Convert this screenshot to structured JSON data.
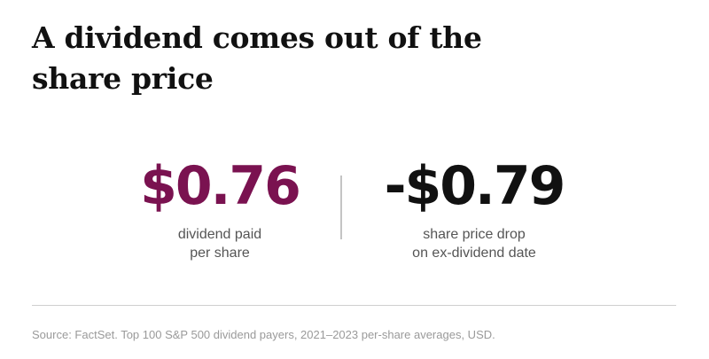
{
  "title": "A dividend comes out of the share price",
  "stats": [
    {
      "value": "$0.76",
      "label_line1": "dividend paid",
      "label_line2": "per share",
      "color": "#7a1250"
    },
    {
      "value": "-$0.79",
      "label_line1": "share price drop",
      "label_line2": "on ex-dividend date",
      "color": "#111111"
    }
  ],
  "source": "Source: FactSet. Top 100 S&P 500 dividend payers, 2021–2023 per-share averages, USD."
}
